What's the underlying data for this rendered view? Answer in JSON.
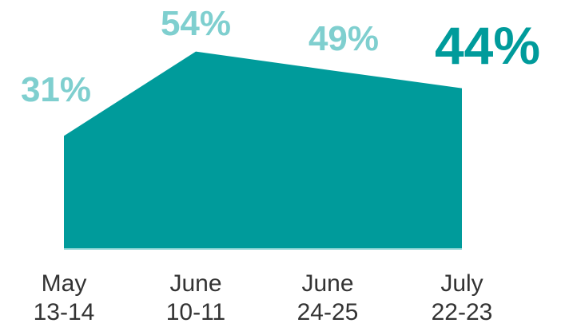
{
  "chart_data": {
    "type": "area",
    "categories": [
      "May 13-14",
      "June 10-11",
      "June 24-25",
      "July 22-23"
    ],
    "values": [
      31,
      54,
      49,
      44
    ],
    "value_labels": [
      "31%",
      "54%",
      "49%",
      "44%"
    ],
    "color": "#009b9b"
  }
}
